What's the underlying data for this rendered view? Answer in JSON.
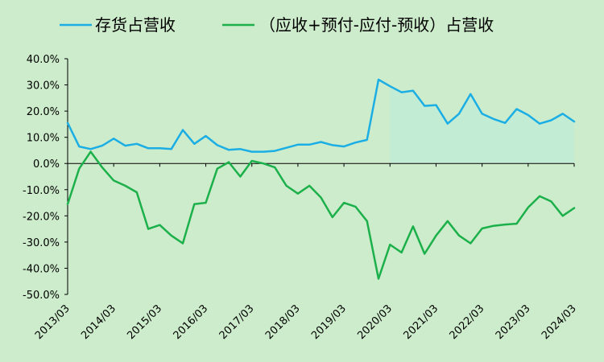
{
  "chart_data": {
    "type": "line",
    "title": "",
    "xlabel": "",
    "ylabel": "",
    "ylim": [
      -50,
      40
    ],
    "y_ticks": [
      "40.0%",
      "30.0%",
      "20.0%",
      "10.0%",
      "0.0%",
      "-10.0%",
      "-20.0%",
      "-30.0%",
      "-40.0%",
      "-50.0%"
    ],
    "x_tick_labels": [
      "2013/03",
      "2014/03",
      "2015/03",
      "2016/03",
      "2017/03",
      "2018/03",
      "2019/03",
      "2020/03",
      "2021/03",
      "2022/03",
      "2023/03",
      "2024/03"
    ],
    "x_start": "2013/03",
    "x_end": "2024/03",
    "grid": false,
    "legend_position": "top",
    "series": [
      {
        "name": "存货占营收",
        "color": "#1aaee5",
        "values": [
          15.5,
          6.5,
          5.5,
          6.8,
          9.5,
          6.8,
          7.5,
          5.8,
          5.8,
          5.5,
          12.8,
          7.5,
          10.5,
          7.0,
          5.2,
          5.5,
          4.5,
          4.5,
          4.8,
          6.0,
          7.2,
          7.2,
          8.2,
          7.0,
          6.5,
          8.0,
          9.0,
          32.0,
          29.5,
          27.2,
          27.8,
          22.0,
          22.3,
          15.2,
          19.0,
          26.5,
          19.0,
          17.0,
          15.5,
          20.8,
          18.5,
          15.2,
          16.5,
          19.0,
          16.0
        ],
        "fill_area_from": "2020/03"
      },
      {
        "name": "（应收+预付-应付-预收）占营收",
        "color": "#1cb04b",
        "values": [
          -15.5,
          -2.0,
          4.5,
          -1.5,
          -6.5,
          -8.5,
          -11.0,
          -25.0,
          -23.5,
          -27.5,
          -30.5,
          -15.5,
          -15.0,
          -2.0,
          0.5,
          -5.0,
          1.0,
          0.0,
          -1.5,
          -8.5,
          -11.5,
          -8.5,
          -13.0,
          -20.5,
          -15.0,
          -16.5,
          -22.0,
          -44.0,
          -31.0,
          -34.0,
          -24.0,
          -34.5,
          -27.5,
          -22.0,
          -27.5,
          -30.5,
          -24.8,
          -23.8,
          -23.3,
          -23.0,
          -16.8,
          -12.5,
          -14.5,
          -20.0,
          -17.0
        ]
      }
    ]
  }
}
